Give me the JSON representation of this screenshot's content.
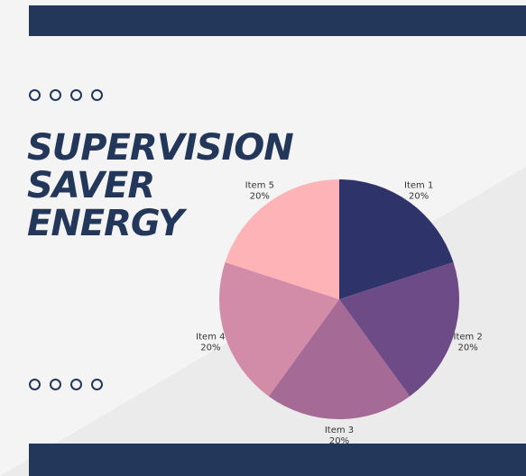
{
  "slide": {
    "title_lines": [
      "SUPERVISION",
      "SAVER",
      "ENERGY"
    ]
  },
  "colors": {
    "band": "#23375a",
    "background": "#f4f4f5",
    "diagonal": "#ebebec"
  },
  "chart_data": {
    "type": "pie",
    "title": "",
    "labels": [
      "Item 1",
      "Item 2",
      "Item 3",
      "Item 4",
      "Item 5"
    ],
    "values": [
      20,
      20,
      20,
      20,
      20
    ],
    "value_labels": [
      "20%",
      "20%",
      "20%",
      "20%",
      "20%"
    ],
    "colors": [
      "#2e3369",
      "#6d4b86",
      "#a56a95",
      "#d38ca8",
      "#feb3b6"
    ],
    "start_angle": "12 o'clock",
    "direction": "clockwise"
  }
}
